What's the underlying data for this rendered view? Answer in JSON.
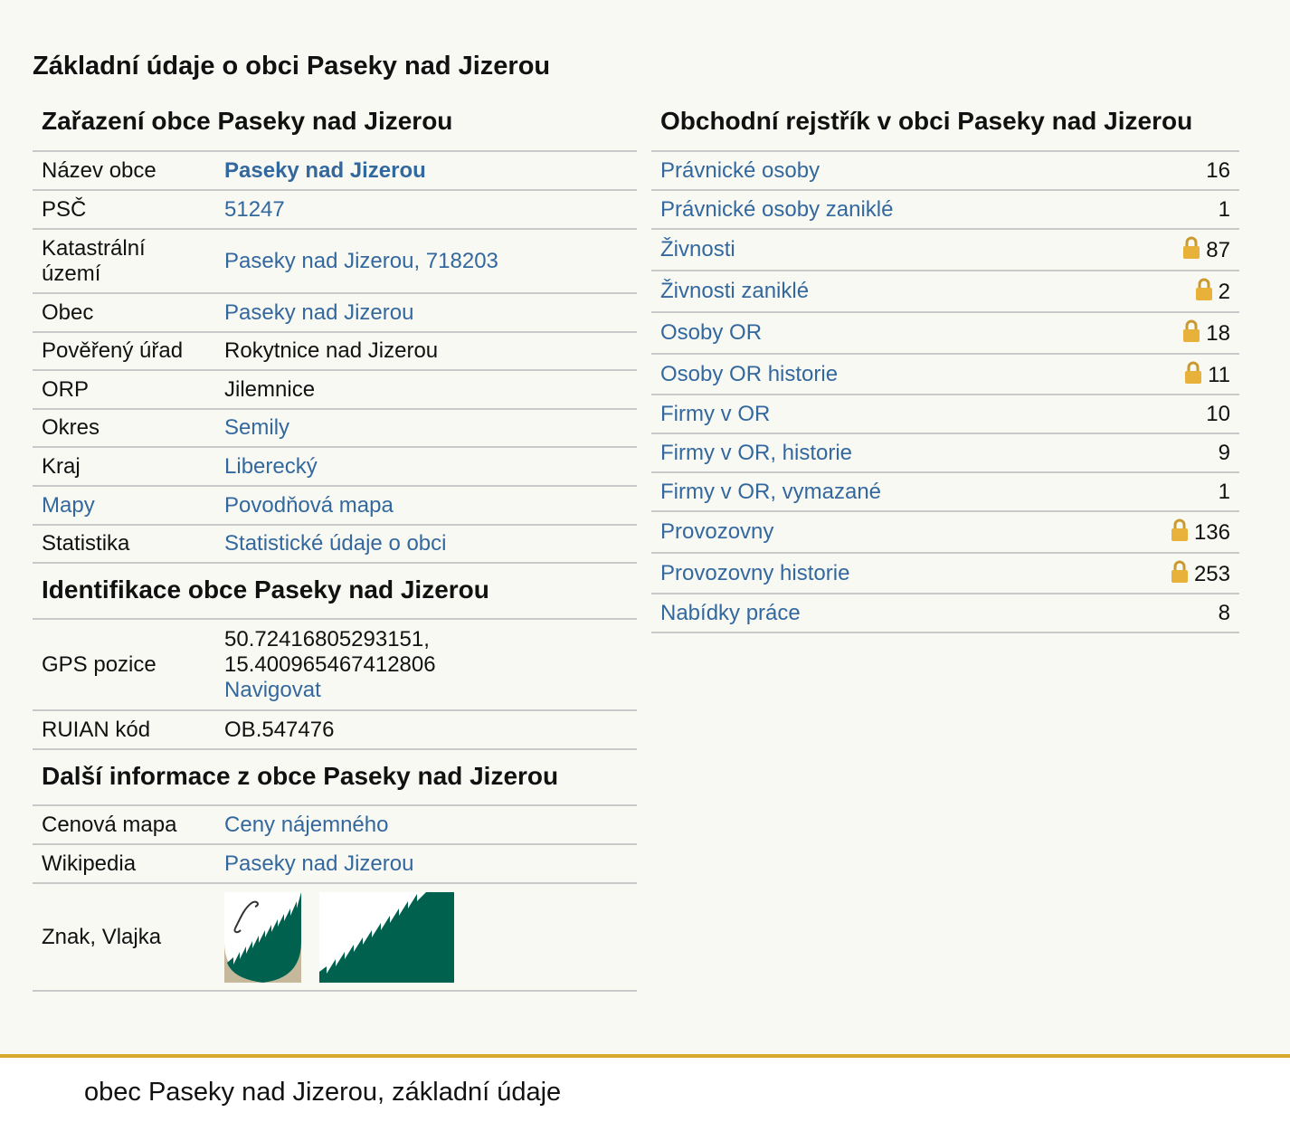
{
  "page_title": "Základní údaje o obci Paseky nad Jizerou",
  "zarazeni": {
    "heading": "Zařazení obce Paseky nad Jizerou",
    "rows": [
      {
        "label": "Název obce",
        "value": "Paseky nad Jizerou"
      },
      {
        "label": "PSČ",
        "value": "51247"
      },
      {
        "label": "Katastrální území",
        "value": "Paseky nad Jizerou, 718203"
      },
      {
        "label": "Obec",
        "value": "Paseky nad Jizerou"
      },
      {
        "label": "Pověřený úřad",
        "value": "Rokytnice nad Jizerou"
      },
      {
        "label": "ORP",
        "value": "Jilemnice"
      },
      {
        "label": "Okres",
        "value": "Semily"
      },
      {
        "label": "Kraj",
        "value": "Liberecký"
      },
      {
        "label": "Mapy",
        "value": "Povodňová mapa"
      },
      {
        "label": "Statistika",
        "value": "Statistické údaje o obci"
      }
    ]
  },
  "identifikace": {
    "heading": "Identifikace obce Paseky nad Jizerou",
    "gps_label": "GPS pozice",
    "gps_lat": "50.72416805293151,",
    "gps_lon": "15.400965467412806",
    "navigate": "Navigovat",
    "ruian_label": "RUIAN kód",
    "ruian_value": "OB.547476"
  },
  "dalsi": {
    "heading": "Další informace z obce Paseky nad Jizerou",
    "rows": [
      {
        "label": "Cenová mapa",
        "value": "Ceny nájemného"
      },
      {
        "label": "Wikipedia",
        "value": "Paseky nad Jizerou"
      },
      {
        "label": "Znak, Vlajka"
      }
    ]
  },
  "obchodni": {
    "heading": "Obchodní rejstřík v obci Paseky nad Jizerou",
    "rows": [
      {
        "label": "Právnické osoby",
        "count": "16",
        "locked": false
      },
      {
        "label": "Právnické osoby zaniklé",
        "count": "1",
        "locked": false
      },
      {
        "label": "Živnosti",
        "count": "87",
        "locked": true
      },
      {
        "label": "Živnosti zaniklé",
        "count": "2",
        "locked": true
      },
      {
        "label": "Osoby OR",
        "count": "18",
        "locked": true
      },
      {
        "label": "Osoby OR historie",
        "count": "11",
        "locked": true
      },
      {
        "label": "Firmy v OR",
        "count": "10",
        "locked": false
      },
      {
        "label": "Firmy v OR, historie",
        "count": "9",
        "locked": false
      },
      {
        "label": "Firmy v OR, vymazané",
        "count": "1",
        "locked": false
      },
      {
        "label": "Provozovny",
        "count": "136",
        "locked": true
      },
      {
        "label": "Provozovny historie",
        "count": "253",
        "locked": true
      },
      {
        "label": "Nabídky práce",
        "count": "8",
        "locked": false
      }
    ]
  },
  "footer": {
    "text": "obec Paseky nad Jizerou, základní údaje"
  },
  "colors": {
    "link": "#33689e",
    "accent_line": "#d6aa2e",
    "emblem_green": "#00614f",
    "emblem_tan": "#c6b89a",
    "lock_gold": "#e8b13a"
  },
  "icons": {
    "lock": "lock-icon",
    "coat_of_arms": "coat-of-arms-image",
    "flag": "flag-image"
  }
}
